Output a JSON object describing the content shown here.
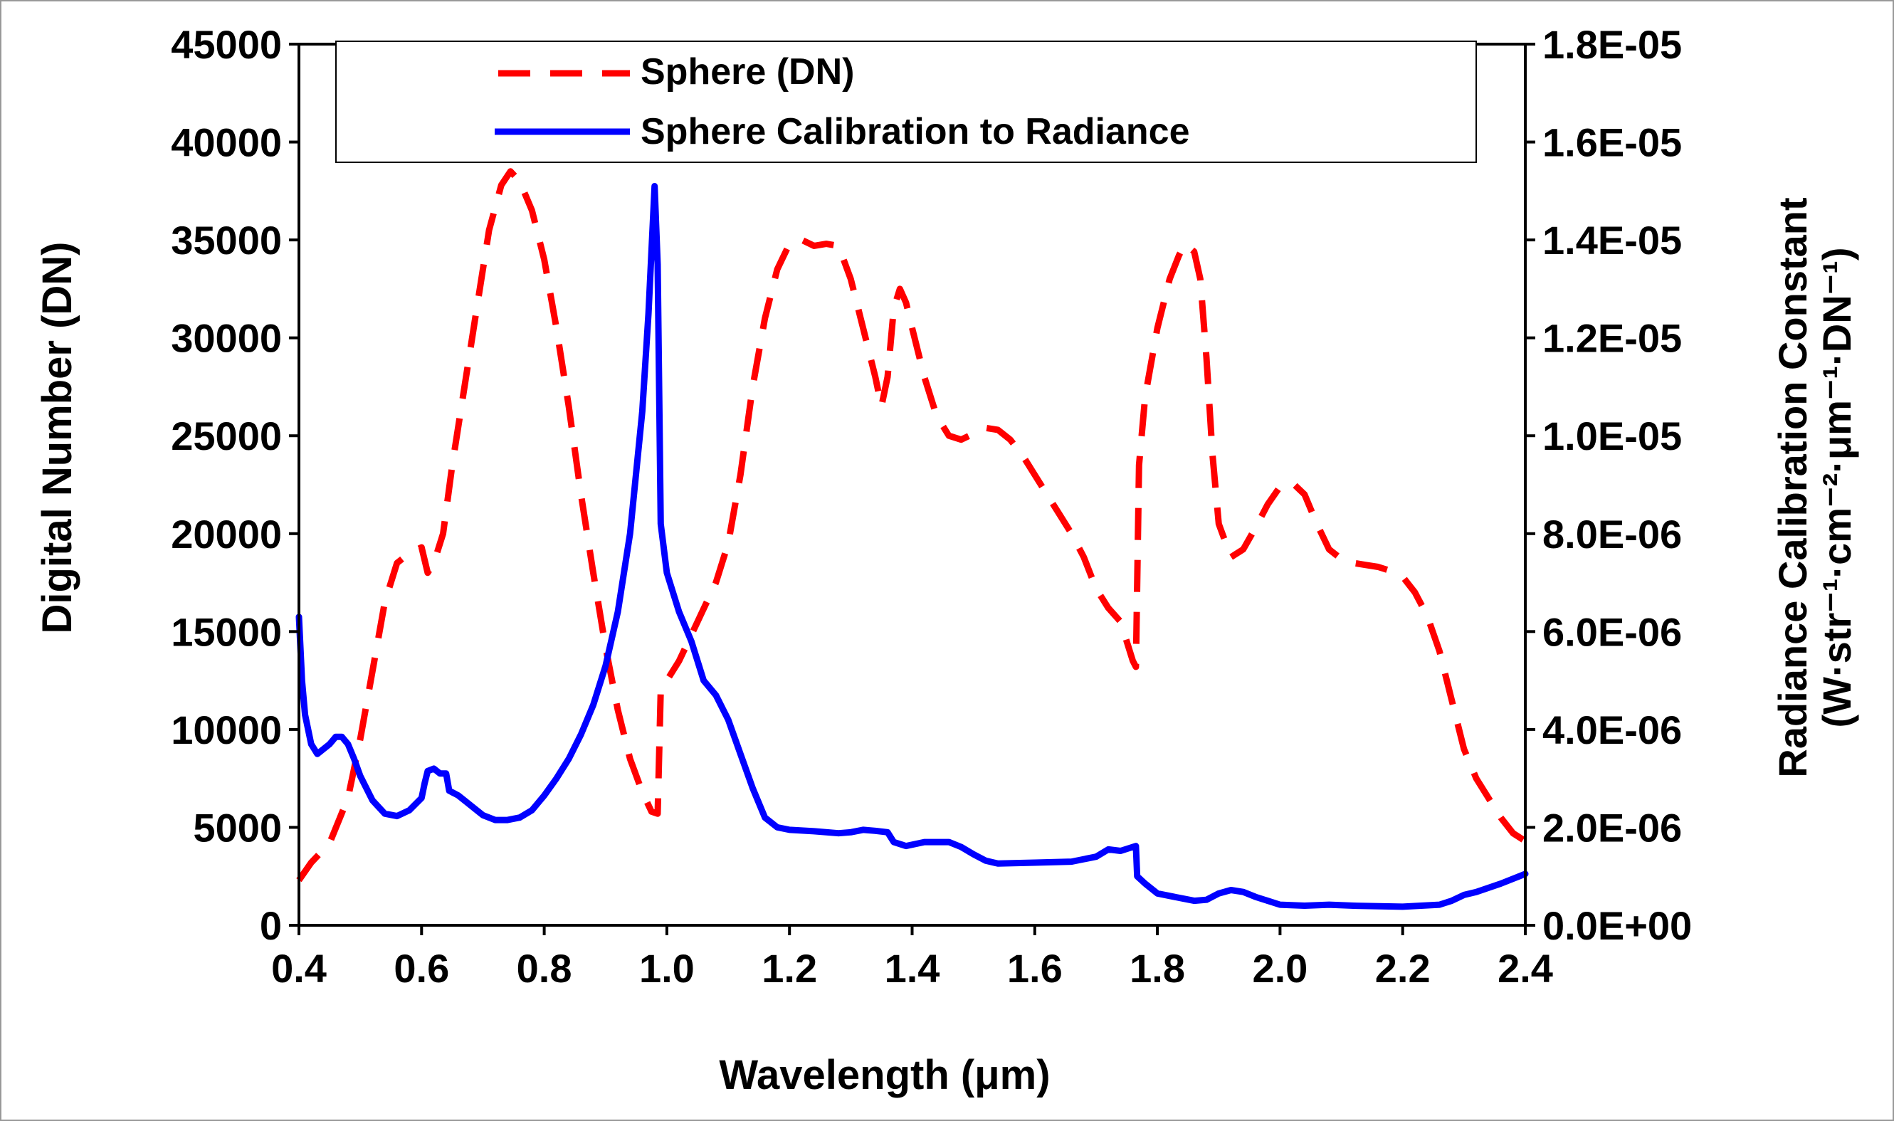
{
  "chart_data": {
    "type": "line",
    "title": "",
    "xlabel": "Wavelength (μm)",
    "ylabel": "Digital Number (DN)",
    "y2label_line1": "Radiance Calibration Constant",
    "y2label_line2": "(W·str⁻¹·cm⁻²·μm⁻¹·DN⁻¹)",
    "xlim": [
      0.4,
      2.4
    ],
    "ylim": [
      0,
      45000
    ],
    "y2lim": [
      0,
      1.8e-05
    ],
    "x_ticks": [
      "0.4",
      "0.6",
      "0.8",
      "1.0",
      "1.2",
      "1.4",
      "1.6",
      "1.8",
      "2.0",
      "2.2",
      "2.4"
    ],
    "y_ticks": [
      "0",
      "5000",
      "10000",
      "15000",
      "20000",
      "25000",
      "30000",
      "35000",
      "40000",
      "45000"
    ],
    "y2_ticks": [
      "0.0E+00",
      "2.0E-06",
      "4.0E-06",
      "6.0E-06",
      "8.0E-06",
      "1.0E-05",
      "1.2E-05",
      "1.4E-05",
      "1.6E-05",
      "1.8E-05"
    ],
    "legend_position": "top",
    "grid": false,
    "series": [
      {
        "name": "Sphere (DN)",
        "axis": "left",
        "color": "#ff0000",
        "style": "dashed",
        "points": [
          [
            0.4,
            2300
          ],
          [
            0.42,
            3200
          ],
          [
            0.45,
            4200
          ],
          [
            0.48,
            6500
          ],
          [
            0.5,
            9500
          ],
          [
            0.52,
            13000
          ],
          [
            0.54,
            16500
          ],
          [
            0.56,
            18500
          ],
          [
            0.58,
            19000
          ],
          [
            0.6,
            19300
          ],
          [
            0.61,
            18000
          ],
          [
            0.62,
            18500
          ],
          [
            0.635,
            20000
          ],
          [
            0.65,
            23500
          ],
          [
            0.67,
            27500
          ],
          [
            0.69,
            31500
          ],
          [
            0.71,
            35500
          ],
          [
            0.73,
            37800
          ],
          [
            0.745,
            38500
          ],
          [
            0.76,
            38000
          ],
          [
            0.78,
            36500
          ],
          [
            0.8,
            34000
          ],
          [
            0.82,
            30500
          ],
          [
            0.84,
            26500
          ],
          [
            0.86,
            22000
          ],
          [
            0.88,
            18000
          ],
          [
            0.9,
            14200
          ],
          [
            0.92,
            11000
          ],
          [
            0.94,
            8500
          ],
          [
            0.96,
            6800
          ],
          [
            0.975,
            5800
          ],
          [
            0.985,
            5700
          ],
          [
            0.99,
            12000
          ],
          [
            1.0,
            12500
          ],
          [
            1.02,
            13500
          ],
          [
            1.05,
            15500
          ],
          [
            1.08,
            17500
          ],
          [
            1.1,
            19500
          ],
          [
            1.12,
            23000
          ],
          [
            1.14,
            27500
          ],
          [
            1.16,
            31000
          ],
          [
            1.18,
            33500
          ],
          [
            1.2,
            34800
          ],
          [
            1.22,
            35000
          ],
          [
            1.24,
            34700
          ],
          [
            1.26,
            34800
          ],
          [
            1.28,
            34700
          ],
          [
            1.3,
            33000
          ],
          [
            1.32,
            30500
          ],
          [
            1.34,
            28000
          ],
          [
            1.35,
            26500
          ],
          [
            1.36,
            28000
          ],
          [
            1.37,
            31500
          ],
          [
            1.38,
            32500
          ],
          [
            1.39,
            31800
          ],
          [
            1.4,
            30500
          ],
          [
            1.42,
            28000
          ],
          [
            1.44,
            26000
          ],
          [
            1.46,
            25000
          ],
          [
            1.48,
            24800
          ],
          [
            1.5,
            25100
          ],
          [
            1.52,
            25400
          ],
          [
            1.54,
            25300
          ],
          [
            1.56,
            24800
          ],
          [
            1.58,
            24000
          ],
          [
            1.6,
            23000
          ],
          [
            1.62,
            22000
          ],
          [
            1.64,
            21000
          ],
          [
            1.66,
            20000
          ],
          [
            1.68,
            18800
          ],
          [
            1.7,
            17200
          ],
          [
            1.72,
            16200
          ],
          [
            1.74,
            15500
          ],
          [
            1.75,
            14500
          ],
          [
            1.76,
            13500
          ],
          [
            1.765,
            13200
          ],
          [
            1.77,
            23500
          ],
          [
            1.78,
            27000
          ],
          [
            1.8,
            30500
          ],
          [
            1.82,
            33000
          ],
          [
            1.835,
            34200
          ],
          [
            1.845,
            34800
          ],
          [
            1.86,
            34400
          ],
          [
            1.87,
            33000
          ],
          [
            1.88,
            29000
          ],
          [
            1.89,
            24000
          ],
          [
            1.9,
            20500
          ],
          [
            1.92,
            18800
          ],
          [
            1.94,
            19200
          ],
          [
            1.96,
            20300
          ],
          [
            1.98,
            21500
          ],
          [
            2.0,
            22400
          ],
          [
            2.02,
            22600
          ],
          [
            2.04,
            22000
          ],
          [
            2.06,
            20500
          ],
          [
            2.08,
            19200
          ],
          [
            2.1,
            18700
          ],
          [
            2.12,
            18500
          ],
          [
            2.14,
            18400
          ],
          [
            2.16,
            18300
          ],
          [
            2.18,
            18100
          ],
          [
            2.2,
            17800
          ],
          [
            2.22,
            17000
          ],
          [
            2.24,
            15800
          ],
          [
            2.26,
            14000
          ],
          [
            2.28,
            11500
          ],
          [
            2.3,
            9000
          ],
          [
            2.32,
            7500
          ],
          [
            2.34,
            6500
          ],
          [
            2.36,
            5500
          ],
          [
            2.38,
            4700
          ],
          [
            2.4,
            4300
          ]
        ]
      },
      {
        "name": "Sphere Calibration to Radiance",
        "axis": "right",
        "color": "#0000ff",
        "style": "solid",
        "points": [
          [
            0.4,
            6.3e-06
          ],
          [
            0.405,
            5e-06
          ],
          [
            0.41,
            4.3e-06
          ],
          [
            0.42,
            3.7e-06
          ],
          [
            0.43,
            3.5e-06
          ],
          [
            0.44,
            3.6e-06
          ],
          [
            0.45,
            3.7e-06
          ],
          [
            0.46,
            3.85e-06
          ],
          [
            0.47,
            3.85e-06
          ],
          [
            0.48,
            3.7e-06
          ],
          [
            0.49,
            3.4e-06
          ],
          [
            0.5,
            3.05e-06
          ],
          [
            0.52,
            2.55e-06
          ],
          [
            0.54,
            2.28e-06
          ],
          [
            0.56,
            2.23e-06
          ],
          [
            0.58,
            2.35e-06
          ],
          [
            0.6,
            2.6e-06
          ],
          [
            0.605,
            2.9e-06
          ],
          [
            0.61,
            3.15e-06
          ],
          [
            0.62,
            3.2e-06
          ],
          [
            0.63,
            3.1e-06
          ],
          [
            0.64,
            3.1e-06
          ],
          [
            0.645,
            2.75e-06
          ],
          [
            0.66,
            2.65e-06
          ],
          [
            0.68,
            2.45e-06
          ],
          [
            0.7,
            2.25e-06
          ],
          [
            0.72,
            2.15e-06
          ],
          [
            0.74,
            2.15e-06
          ],
          [
            0.76,
            2.2e-06
          ],
          [
            0.78,
            2.35e-06
          ],
          [
            0.8,
            2.65e-06
          ],
          [
            0.82,
            3e-06
          ],
          [
            0.84,
            3.4e-06
          ],
          [
            0.86,
            3.9e-06
          ],
          [
            0.88,
            4.5e-06
          ],
          [
            0.9,
            5.3e-06
          ],
          [
            0.92,
            6.4e-06
          ],
          [
            0.94,
            8e-06
          ],
          [
            0.96,
            1.05e-05
          ],
          [
            0.97,
            1.25e-05
          ],
          [
            0.98,
            1.51e-05
          ],
          [
            0.985,
            1.35e-05
          ],
          [
            0.99,
            8.2e-06
          ],
          [
            1.0,
            7.2e-06
          ],
          [
            1.02,
            6.4e-06
          ],
          [
            1.04,
            5.8e-06
          ],
          [
            1.06,
            5e-06
          ],
          [
            1.08,
            4.7e-06
          ],
          [
            1.1,
            4.2e-06
          ],
          [
            1.12,
            3.5e-06
          ],
          [
            1.14,
            2.8e-06
          ],
          [
            1.16,
            2.2e-06
          ],
          [
            1.18,
            2e-06
          ],
          [
            1.2,
            1.95e-06
          ],
          [
            1.24,
            1.92e-06
          ],
          [
            1.28,
            1.88e-06
          ],
          [
            1.3,
            1.9e-06
          ],
          [
            1.32,
            1.95e-06
          ],
          [
            1.34,
            1.93e-06
          ],
          [
            1.36,
            1.9e-06
          ],
          [
            1.37,
            1.7e-06
          ],
          [
            1.39,
            1.62e-06
          ],
          [
            1.42,
            1.7e-06
          ],
          [
            1.46,
            1.7e-06
          ],
          [
            1.48,
            1.6e-06
          ],
          [
            1.5,
            1.45e-06
          ],
          [
            1.52,
            1.32e-06
          ],
          [
            1.54,
            1.26e-06
          ],
          [
            1.6,
            1.28e-06
          ],
          [
            1.66,
            1.3e-06
          ],
          [
            1.7,
            1.4e-06
          ],
          [
            1.72,
            1.55e-06
          ],
          [
            1.74,
            1.52e-06
          ],
          [
            1.76,
            1.6e-06
          ],
          [
            1.765,
            1.62e-06
          ],
          [
            1.767,
            1e-06
          ],
          [
            1.78,
            8.5e-07
          ],
          [
            1.8,
            6.5e-07
          ],
          [
            1.84,
            5.5e-07
          ],
          [
            1.86,
            5e-07
          ],
          [
            1.88,
            5.2e-07
          ],
          [
            1.9,
            6.5e-07
          ],
          [
            1.92,
            7.2e-07
          ],
          [
            1.94,
            6.8e-07
          ],
          [
            1.96,
            5.8e-07
          ],
          [
            2.0,
            4.2e-07
          ],
          [
            2.04,
            4e-07
          ],
          [
            2.08,
            4.2e-07
          ],
          [
            2.12,
            4e-07
          ],
          [
            2.2,
            3.8e-07
          ],
          [
            2.26,
            4.2e-07
          ],
          [
            2.28,
            5e-07
          ],
          [
            2.3,
            6.2e-07
          ],
          [
            2.32,
            6.8e-07
          ],
          [
            2.36,
            8.5e-07
          ],
          [
            2.4,
            1.05e-06
          ]
        ]
      }
    ]
  }
}
